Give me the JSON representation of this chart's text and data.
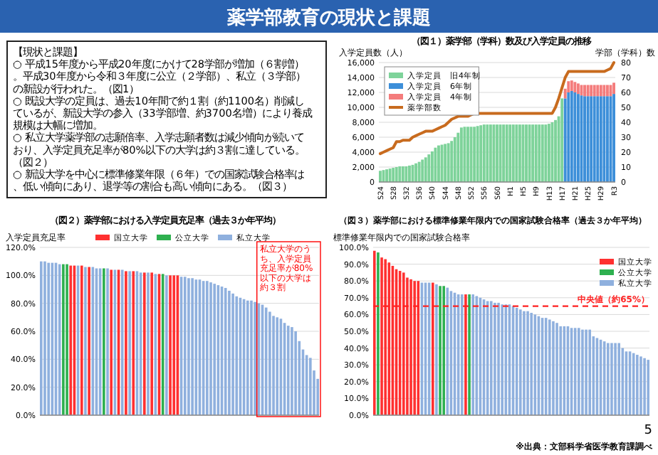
{
  "chart_data": [
    {
      "type": "other",
      "title": "薬学部教育の現状と課題",
      "annotations": [
        "【現状と課題】",
        "○ 平成15年度から平成20年度にかけて28学部が増加（６割増）。平成30年度から令和３年度に公立（２学部）、私立（３学部）の新設が行われた。（図1）",
        "○ 既設大学の定員は、過去10年間で約１割（約1100名）削減しているが、新設大学の参入（33学部増、約3700名増）により養成規模は大幅に増加。",
        "○ 私立大学薬学部の志願倍率、入学志願者数は減少傾向が続いており、入学定員充足率が80%以下の大学は約３割に達している。（図２）",
        "○ 新設大学を中心に標準修業年限（６年）での国家試験合格率は、低い傾向にあり、退学等の割合も高い傾向にある。（図３）"
      ]
    },
    {
      "type": "bar",
      "stacked": true,
      "title": "（図１）薬学部（学科）数及び入学定員の推移",
      "ylabel": "入学定員数（人）",
      "y2label": "学部（学科）数",
      "grid": "y",
      "legend": "top left",
      "categories": [
        "S24",
        null,
        null,
        null,
        "S28",
        null,
        null,
        null,
        "S32",
        null,
        null,
        null,
        "S36",
        null,
        null,
        null,
        "S40",
        null,
        null,
        null,
        "S44",
        null,
        null,
        null,
        "S48",
        null,
        null,
        null,
        "S52",
        null,
        null,
        null,
        "S56",
        null,
        null,
        null,
        "S60",
        null,
        null,
        null,
        "H1",
        null,
        null,
        null,
        "H5",
        null,
        null,
        null,
        "H9",
        null,
        null,
        null,
        "H13",
        null,
        null,
        null,
        "H17",
        null,
        null,
        null,
        "H21",
        null,
        null,
        null,
        "H25",
        null,
        null,
        null,
        "H29",
        null,
        null,
        null,
        "R3"
      ],
      "series": [
        {
          "name": "入学定員　旧4年制",
          "color": "#7ed39a",
          "values": [
            1500,
            1600,
            1700,
            1800,
            1900,
            2000,
            2100,
            2100,
            2100,
            2200,
            2300,
            2500,
            2700,
            3000,
            3300,
            3700,
            4100,
            4600,
            4900,
            5000,
            5100,
            5200,
            5500,
            6000,
            6600,
            7300,
            7400,
            7400,
            7400,
            7400,
            7500,
            7600,
            7700,
            7700,
            7700,
            7700,
            7700,
            7700,
            7700,
            7700,
            7700,
            7700,
            7700,
            7700,
            7700,
            7700,
            7700,
            7700,
            7700,
            7700,
            7700,
            7700,
            7800,
            8000,
            8300,
            8800,
            11200,
            null,
            null,
            null,
            null,
            null,
            null,
            null,
            null,
            null,
            null,
            null,
            null,
            null,
            null,
            null,
            null
          ]
        },
        {
          "name": "入学定員　6年制",
          "color": "#3d8fd9",
          "values": [
            null,
            null,
            null,
            null,
            null,
            null,
            null,
            null,
            null,
            null,
            null,
            null,
            null,
            null,
            null,
            null,
            null,
            null,
            null,
            null,
            null,
            null,
            null,
            null,
            null,
            null,
            null,
            null,
            null,
            null,
            null,
            null,
            null,
            null,
            null,
            null,
            null,
            null,
            null,
            null,
            null,
            null,
            null,
            null,
            null,
            null,
            null,
            null,
            null,
            null,
            null,
            null,
            null,
            null,
            null,
            null,
            null,
            11200,
            12000,
            12200,
            12000,
            11800,
            11600,
            11500,
            11500,
            11500,
            11500,
            11500,
            11500,
            11500,
            11500,
            11500,
            11800
          ]
        },
        {
          "name": "入学定員　4年制",
          "color": "#f47c7c",
          "values": [
            null,
            null,
            null,
            null,
            null,
            null,
            null,
            null,
            null,
            null,
            null,
            null,
            null,
            null,
            null,
            null,
            null,
            null,
            null,
            null,
            null,
            null,
            null,
            null,
            null,
            null,
            null,
            null,
            null,
            null,
            null,
            null,
            null,
            null,
            null,
            null,
            null,
            null,
            null,
            null,
            null,
            null,
            null,
            null,
            null,
            null,
            null,
            null,
            null,
            null,
            null,
            null,
            null,
            null,
            null,
            null,
            null,
            1300,
            1500,
            1400,
            1400,
            1400,
            1400,
            1500,
            1500,
            1500,
            1500,
            1500,
            1500,
            1500,
            1500,
            1500,
            1500
          ]
        },
        {
          "name": "薬学部数",
          "type": "line",
          "axis": "y2",
          "color": "#c86b1e",
          "values": [
            19,
            20,
            21,
            22,
            23,
            27,
            27,
            28,
            28,
            28,
            30,
            31,
            32,
            33,
            34,
            34,
            34,
            35,
            36,
            37,
            38,
            40,
            42,
            43,
            44,
            44,
            44,
            44,
            45,
            46,
            46,
            46,
            46,
            46,
            46,
            46,
            46,
            46,
            46,
            46,
            46,
            46,
            46,
            46,
            46,
            46,
            46,
            46,
            46,
            46,
            46,
            46,
            46,
            46,
            50,
            56,
            63,
            70,
            74,
            74,
            74,
            74,
            74,
            74,
            74,
            74,
            74,
            74,
            74,
            74,
            75,
            76,
            80
          ]
        }
      ],
      "ylim": [
        0,
        16000
      ],
      "yticks": [
        0,
        {
          "value": 2000,
          "label": "2,000"
        },
        {
          "value": 4000,
          "label": "4,000"
        },
        {
          "value": 6000,
          "label": "6,000"
        },
        {
          "value": 8000,
          "label": "8,000"
        },
        {
          "value": 10000,
          "label": "10,000"
        },
        {
          "value": 12000,
          "label": "12,000"
        },
        {
          "value": 14000,
          "label": "14,000"
        },
        {
          "value": 16000,
          "label": "16,000"
        }
      ],
      "y2lim": [
        0,
        80
      ],
      "y2ticks": [
        0,
        10,
        20,
        30,
        40,
        50,
        60,
        70,
        80
      ]
    },
    {
      "type": "bar",
      "stacked": true,
      "title": "（図２）薬学部における入学定員充足率（過去３か年平均）",
      "ylabel": "入学定員充足率",
      "grid": "y",
      "legend": "top",
      "categories": [
        null,
        null,
        null,
        null,
        null,
        null,
        null,
        null,
        null,
        null,
        null,
        null,
        null,
        null,
        null,
        null,
        null,
        null,
        null,
        null,
        null,
        null,
        null,
        null,
        null,
        null,
        null,
        null,
        null,
        null,
        null,
        null,
        null,
        null,
        null,
        null,
        null,
        null,
        null,
        null,
        null,
        null,
        null,
        null,
        null,
        null,
        null,
        null,
        null,
        null,
        null,
        null,
        null,
        null,
        null,
        null,
        null,
        null,
        null,
        null,
        null,
        null,
        null,
        null,
        null,
        null,
        null,
        null,
        null,
        null,
        null,
        null,
        null,
        null,
        null,
        null
      ],
      "series": [
        {
          "name": "国立大学",
          "color": "#ff3030",
          "values": [
            null,
            null,
            null,
            null,
            null,
            null,
            null,
            null,
            107,
            107,
            null,
            107,
            null,
            106,
            null,
            null,
            null,
            null,
            null,
            104,
            null,
            104,
            null,
            103,
            null,
            103,
            null,
            null,
            102,
            null,
            102,
            null,
            101,
            null,
            null,
            100,
            100,
            100,
            null,
            null,
            null,
            null,
            null,
            null,
            null,
            null,
            null,
            null,
            null,
            null,
            null,
            null,
            null,
            null,
            null,
            null,
            null,
            null,
            null,
            null,
            null,
            null,
            null,
            null,
            null,
            null,
            null,
            null,
            null,
            null,
            null,
            null,
            null,
            null,
            null,
            null
          ]
        },
        {
          "name": "公立大学",
          "color": "#2eb04f",
          "values": [
            null,
            null,
            null,
            null,
            null,
            null,
            108,
            108,
            null,
            null,
            null,
            null,
            null,
            null,
            null,
            null,
            null,
            105,
            null,
            null,
            null,
            null,
            null,
            null,
            null,
            null,
            null,
            null,
            null,
            null,
            null,
            null,
            null,
            101,
            null,
            null,
            null,
            null,
            null,
            null,
            null,
            null,
            null,
            null,
            null,
            null,
            null,
            null,
            null,
            null,
            null,
            null,
            null,
            null,
            null,
            null,
            null,
            null,
            null,
            null,
            null,
            null,
            null,
            null,
            null,
            null,
            null,
            null,
            null,
            null,
            null,
            null,
            null,
            null,
            null,
            null
          ]
        },
        {
          "name": "私立大学",
          "color": "#8fb0de",
          "values": [
            110,
            110,
            109,
            109,
            109,
            108,
            null,
            null,
            null,
            null,
            107,
            null,
            106,
            null,
            106,
            105,
            105,
            null,
            105,
            null,
            104,
            null,
            104,
            null,
            103,
            null,
            103,
            102,
            null,
            102,
            null,
            101,
            null,
            null,
            100,
            null,
            null,
            null,
            99,
            99,
            98,
            98,
            97,
            97,
            96,
            96,
            95,
            94,
            93,
            92,
            91,
            89,
            87,
            85,
            84,
            83,
            82,
            82,
            81,
            80,
            79,
            77,
            74,
            71,
            70,
            69,
            66,
            64,
            63,
            60,
            53,
            47,
            43,
            41,
            32,
            26
          ]
        }
      ],
      "ylim": [
        0,
        120
      ],
      "yticks": [
        {
          "value": 0,
          "label": "0.0%"
        },
        {
          "value": 20,
          "label": "20.0%"
        },
        {
          "value": 40,
          "label": "40.0%"
        },
        {
          "value": 60,
          "label": "60.0%"
        },
        {
          "value": 80,
          "label": "80.0%"
        },
        {
          "value": 100,
          "label": "100.0%"
        },
        {
          "value": 120,
          "label": "120.0%"
        }
      ],
      "annotations": [
        "私立大学のうち、入学定員充足率が80%以下の大学は約３割"
      ]
    },
    {
      "type": "bar",
      "stacked": true,
      "title": "（図３）薬学部における標準修業年限内での国家試験合格率（過去３か年平均）",
      "ylabel": "標準修業年限内での国家試験合格率",
      "grid": "y",
      "legend": "top right",
      "categories": [
        null,
        null,
        null,
        null,
        null,
        null,
        null,
        null,
        null,
        null,
        null,
        null,
        null,
        null,
        null,
        null,
        null,
        null,
        null,
        null,
        null,
        null,
        null,
        null,
        null,
        null,
        null,
        null,
        null,
        null,
        null,
        null,
        null,
        null,
        null,
        null,
        null,
        null,
        null,
        null,
        null,
        null,
        null,
        null,
        null,
        null,
        null,
        null,
        null,
        null,
        null,
        null,
        null,
        null,
        null,
        null,
        null,
        null,
        null,
        null,
        null,
        null,
        null,
        null,
        null,
        null,
        null,
        null,
        null,
        null,
        null,
        null,
        null,
        null,
        null,
        null
      ],
      "series": [
        {
          "name": "国立大学",
          "color": "#ff3030",
          "values": [
            98,
            null,
            94,
            93,
            91,
            89,
            87,
            86,
            85,
            82,
            81,
            80,
            80,
            null,
            null,
            null,
            79,
            null,
            null,
            null,
            null,
            null,
            null,
            null,
            null,
            72,
            null,
            null,
            null,
            null,
            null,
            null,
            null,
            null,
            null,
            null,
            null,
            null,
            null,
            null,
            null,
            null,
            null,
            null,
            null,
            null,
            null,
            null,
            null,
            null,
            null,
            null,
            null,
            null,
            null,
            null,
            null,
            null,
            null,
            null,
            null,
            null,
            null,
            null,
            null,
            null,
            null,
            null,
            null,
            null,
            null,
            null,
            null,
            null,
            null,
            null
          ]
        },
        {
          "name": "公立大学",
          "color": "#2eb04f",
          "values": [
            null,
            97,
            null,
            null,
            null,
            null,
            null,
            null,
            null,
            null,
            null,
            null,
            null,
            null,
            null,
            null,
            null,
            null,
            77,
            77,
            null,
            null,
            null,
            null,
            null,
            null,
            72,
            null,
            null,
            null,
            null,
            null,
            null,
            null,
            null,
            null,
            null,
            null,
            null,
            null,
            null,
            null,
            null,
            null,
            null,
            null,
            null,
            null,
            null,
            null,
            null,
            null,
            null,
            null,
            null,
            null,
            null,
            null,
            null,
            null,
            null,
            null,
            null,
            null,
            null,
            null,
            null,
            null,
            null,
            null,
            null,
            null,
            null,
            null,
            null,
            null
          ]
        },
        {
          "name": "私立大学",
          "color": "#8fb0de",
          "values": [
            null,
            null,
            null,
            null,
            null,
            null,
            null,
            null,
            null,
            null,
            null,
            null,
            null,
            79,
            79,
            79,
            null,
            78,
            null,
            null,
            76,
            74,
            73,
            72,
            72,
            null,
            null,
            72,
            71,
            70,
            69,
            68,
            68,
            67,
            67,
            66,
            66,
            66,
            65,
            64,
            63,
            62,
            62,
            61,
            60,
            59,
            58,
            58,
            57,
            56,
            55,
            53,
            53,
            53,
            52,
            52,
            52,
            51,
            51,
            51,
            47,
            46,
            45,
            44,
            43,
            43,
            43,
            43,
            40,
            38,
            38,
            37,
            36,
            35,
            34,
            33
          ]
        }
      ],
      "ylim": [
        0,
        100
      ],
      "yticks": [
        {
          "value": 0,
          "label": "0.0%"
        },
        {
          "value": 10,
          "label": "10.0%"
        },
        {
          "value": 20,
          "label": "20.0%"
        },
        {
          "value": 30,
          "label": "30.0%"
        },
        {
          "value": 40,
          "label": "40.0%"
        },
        {
          "value": 50,
          "label": "50.0%"
        },
        {
          "value": 60,
          "label": "60.0%"
        },
        {
          "value": 70,
          "label": "70.0%"
        },
        {
          "value": 80,
          "label": "80.0%"
        },
        {
          "value": 90,
          "label": "90.0%"
        },
        {
          "value": 100,
          "label": "100.0%"
        }
      ],
      "ref_lines": [
        {
          "axis": "y",
          "value": 65,
          "label": "中央値（約65%）",
          "color": "#ff2020",
          "line_style": "dashed"
        }
      ],
      "annotations": [
        "5",
        "※出典：文部科学省医学教育課調べ"
      ]
    }
  ]
}
